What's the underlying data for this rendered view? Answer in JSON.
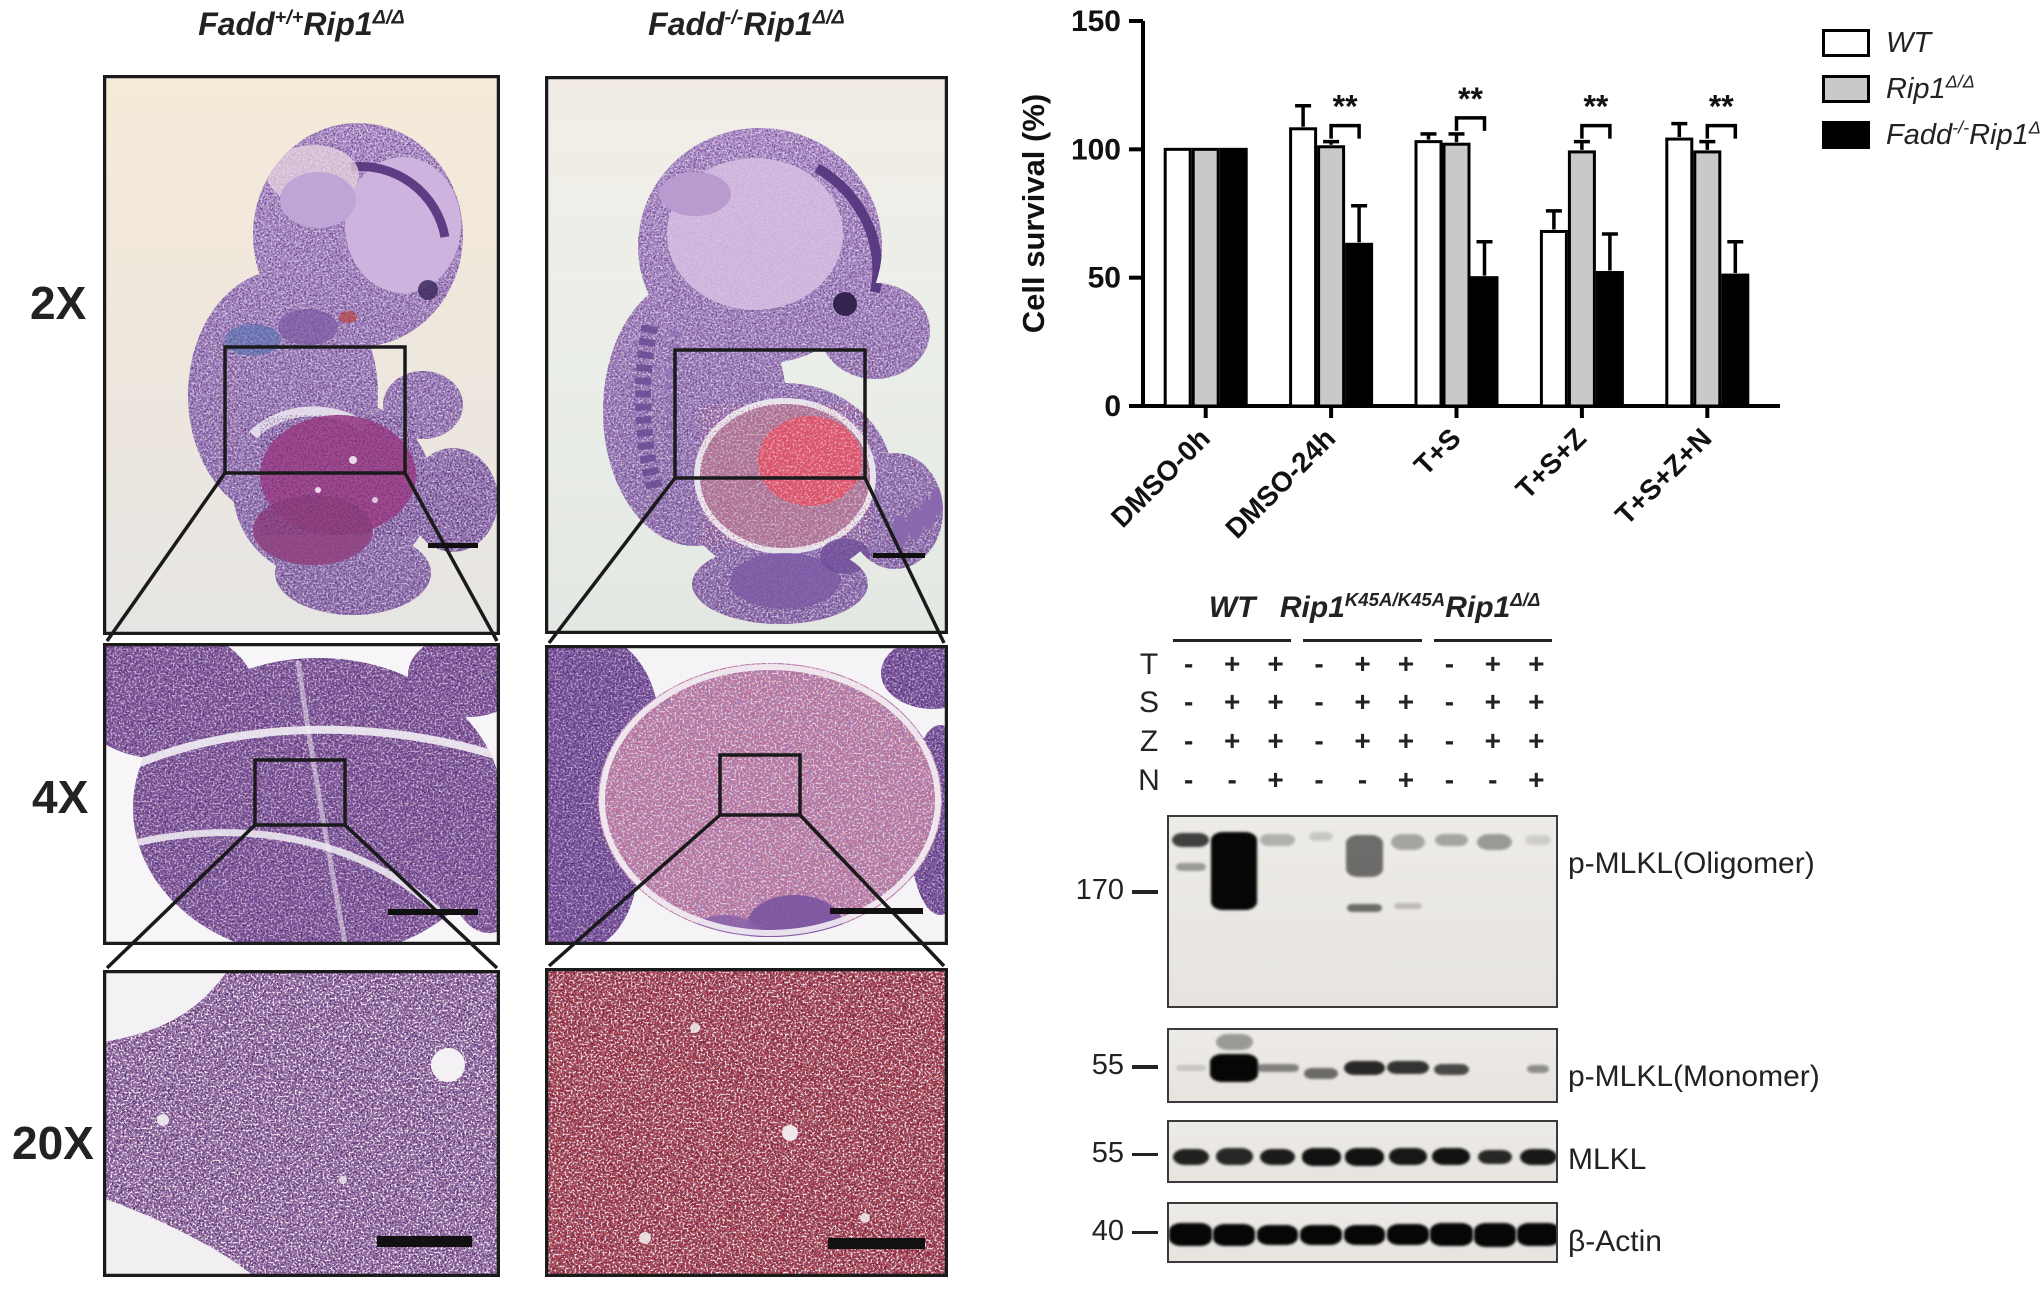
{
  "histology": {
    "row_labels": [
      "2X",
      "4X",
      "20X"
    ],
    "column_titles": [
      [
        {
          "t": "Fadd"
        },
        {
          "t": "+/+",
          "sup": true
        },
        {
          "t": "Rip1"
        },
        {
          "t": "Δ/Δ",
          "sup": true
        }
      ],
      [
        {
          "t": "Fadd"
        },
        {
          "t": "-/-",
          "sup": true
        },
        {
          "t": "Rip1"
        },
        {
          "t": "Δ/Δ",
          "sup": true
        }
      ]
    ]
  },
  "chart_data": {
    "type": "bar",
    "categories": [
      "DMSO-0h",
      "DMSO-24h",
      "T+S",
      "T+S+Z",
      "T+S+Z+N"
    ],
    "series": [
      {
        "name": "WT",
        "color": "#ffffff",
        "name_rich": [
          {
            "t": "WT"
          }
        ],
        "values": [
          100,
          108,
          103,
          68,
          104
        ],
        "errors": [
          0,
          9,
          3,
          8,
          6
        ]
      },
      {
        "name": "Rip1 Δ/Δ",
        "color": "#c9c9c9",
        "name_rich": [
          {
            "t": "Rip1"
          },
          {
            "t": "Δ/Δ",
            "sup": true
          }
        ],
        "values": [
          100,
          101,
          102,
          99,
          99
        ],
        "errors": [
          0,
          2,
          4,
          4,
          4
        ]
      },
      {
        "name": "Fadd -/- Rip1 Δ/Δ",
        "color": "#000000",
        "name_rich": [
          {
            "t": "Fadd"
          },
          {
            "t": "-/-",
            "sup": true
          },
          {
            "t": "Rip1"
          },
          {
            "t": "Δ/Δ",
            "sup": true
          }
        ],
        "values": [
          100,
          63,
          50,
          52,
          51
        ],
        "errors": [
          0,
          15,
          14,
          15,
          13
        ]
      }
    ],
    "ylabel": "Cell survival (%)",
    "ylim": [
      0,
      150
    ],
    "yticks": [
      0,
      50,
      100,
      150
    ],
    "grid": false,
    "legend_position": "upper-right",
    "significance": [
      {
        "category_index": 1,
        "label": "**"
      },
      {
        "category_index": 2,
        "label": "**"
      },
      {
        "category_index": 3,
        "label": "**"
      },
      {
        "category_index": 4,
        "label": "**"
      }
    ]
  },
  "blot": {
    "genotype_headers": [
      [
        {
          "t": "WT"
        }
      ],
      [
        {
          "t": "Rip1"
        },
        {
          "t": "K45A/K45A",
          "sup": true
        }
      ],
      [
        {
          "t": "Rip1"
        },
        {
          "t": "Δ/Δ",
          "sup": true
        }
      ]
    ],
    "treatment_rows": [
      {
        "label": "T",
        "values": [
          "-",
          "+",
          "+",
          "-",
          "+",
          "+",
          "-",
          "+",
          "+"
        ]
      },
      {
        "label": "S",
        "values": [
          "-",
          "+",
          "+",
          "-",
          "+",
          "+",
          "-",
          "+",
          "+"
        ]
      },
      {
        "label": "Z",
        "values": [
          "-",
          "+",
          "+",
          "-",
          "+",
          "+",
          "-",
          "+",
          "+"
        ]
      },
      {
        "label": "N",
        "values": [
          "-",
          "-",
          "+",
          "-",
          "-",
          "+",
          "-",
          "-",
          "+"
        ]
      }
    ],
    "panels": [
      {
        "marker": "170",
        "label": "p-MLKL(Oligomer)",
        "bands": [
          [
            0,
            0.12,
            0.85,
            14,
            0.75
          ],
          [
            0,
            0.26,
            0.7,
            8,
            0.35
          ],
          [
            1,
            0.28,
            1.05,
            78,
            1.0
          ],
          [
            2,
            0.12,
            0.8,
            12,
            0.25
          ],
          [
            3,
            0.1,
            0.55,
            9,
            0.15
          ],
          [
            4,
            0.2,
            0.85,
            42,
            0.55
          ],
          [
            4,
            0.47,
            0.8,
            8,
            0.55
          ],
          [
            5,
            0.13,
            0.8,
            16,
            0.3
          ],
          [
            5,
            0.46,
            0.65,
            6,
            0.2
          ],
          [
            6,
            0.12,
            0.75,
            12,
            0.3
          ],
          [
            7,
            0.13,
            0.8,
            16,
            0.35
          ],
          [
            8,
            0.12,
            0.6,
            10,
            0.12
          ]
        ]
      },
      {
        "marker": "55",
        "label": "p-MLKL(Monomer)",
        "bands": [
          [
            0,
            0.5,
            0.7,
            6,
            0.15
          ],
          [
            1,
            0.16,
            0.85,
            16,
            0.35
          ],
          [
            1,
            0.5,
            1.1,
            28,
            1.0
          ],
          [
            2,
            0.5,
            1.0,
            8,
            0.45
          ],
          [
            3,
            0.58,
            0.8,
            11,
            0.55
          ],
          [
            4,
            0.5,
            0.95,
            14,
            0.85
          ],
          [
            5,
            0.5,
            0.95,
            13,
            0.8
          ],
          [
            6,
            0.52,
            0.8,
            11,
            0.7
          ],
          [
            8,
            0.52,
            0.5,
            8,
            0.4
          ]
        ]
      },
      {
        "marker": "55",
        "label": "MLKL",
        "bands": [
          [
            0,
            0.55,
            0.82,
            16,
            0.88
          ],
          [
            1,
            0.55,
            0.85,
            17,
            0.85
          ],
          [
            2,
            0.55,
            0.82,
            16,
            0.9
          ],
          [
            3,
            0.55,
            0.9,
            18,
            0.95
          ],
          [
            4,
            0.55,
            0.9,
            18,
            0.95
          ],
          [
            5,
            0.55,
            0.88,
            17,
            0.92
          ],
          [
            6,
            0.55,
            0.88,
            17,
            0.95
          ],
          [
            7,
            0.55,
            0.78,
            14,
            0.85
          ],
          [
            8,
            0.55,
            0.85,
            16,
            0.92
          ]
        ]
      },
      {
        "marker": "40",
        "label": "β-Actin",
        "bands": [
          [
            0,
            0.5,
            0.98,
            23,
            1.0
          ],
          [
            1,
            0.5,
            0.98,
            22,
            1.0
          ],
          [
            2,
            0.5,
            0.95,
            20,
            1.0
          ],
          [
            3,
            0.5,
            0.95,
            20,
            1.0
          ],
          [
            4,
            0.5,
            0.95,
            20,
            1.0
          ],
          [
            5,
            0.5,
            0.95,
            21,
            1.0
          ],
          [
            6,
            0.5,
            0.98,
            23,
            1.0
          ],
          [
            7,
            0.5,
            0.98,
            24,
            1.0
          ],
          [
            8,
            0.5,
            0.98,
            23,
            1.0
          ]
        ]
      }
    ]
  }
}
